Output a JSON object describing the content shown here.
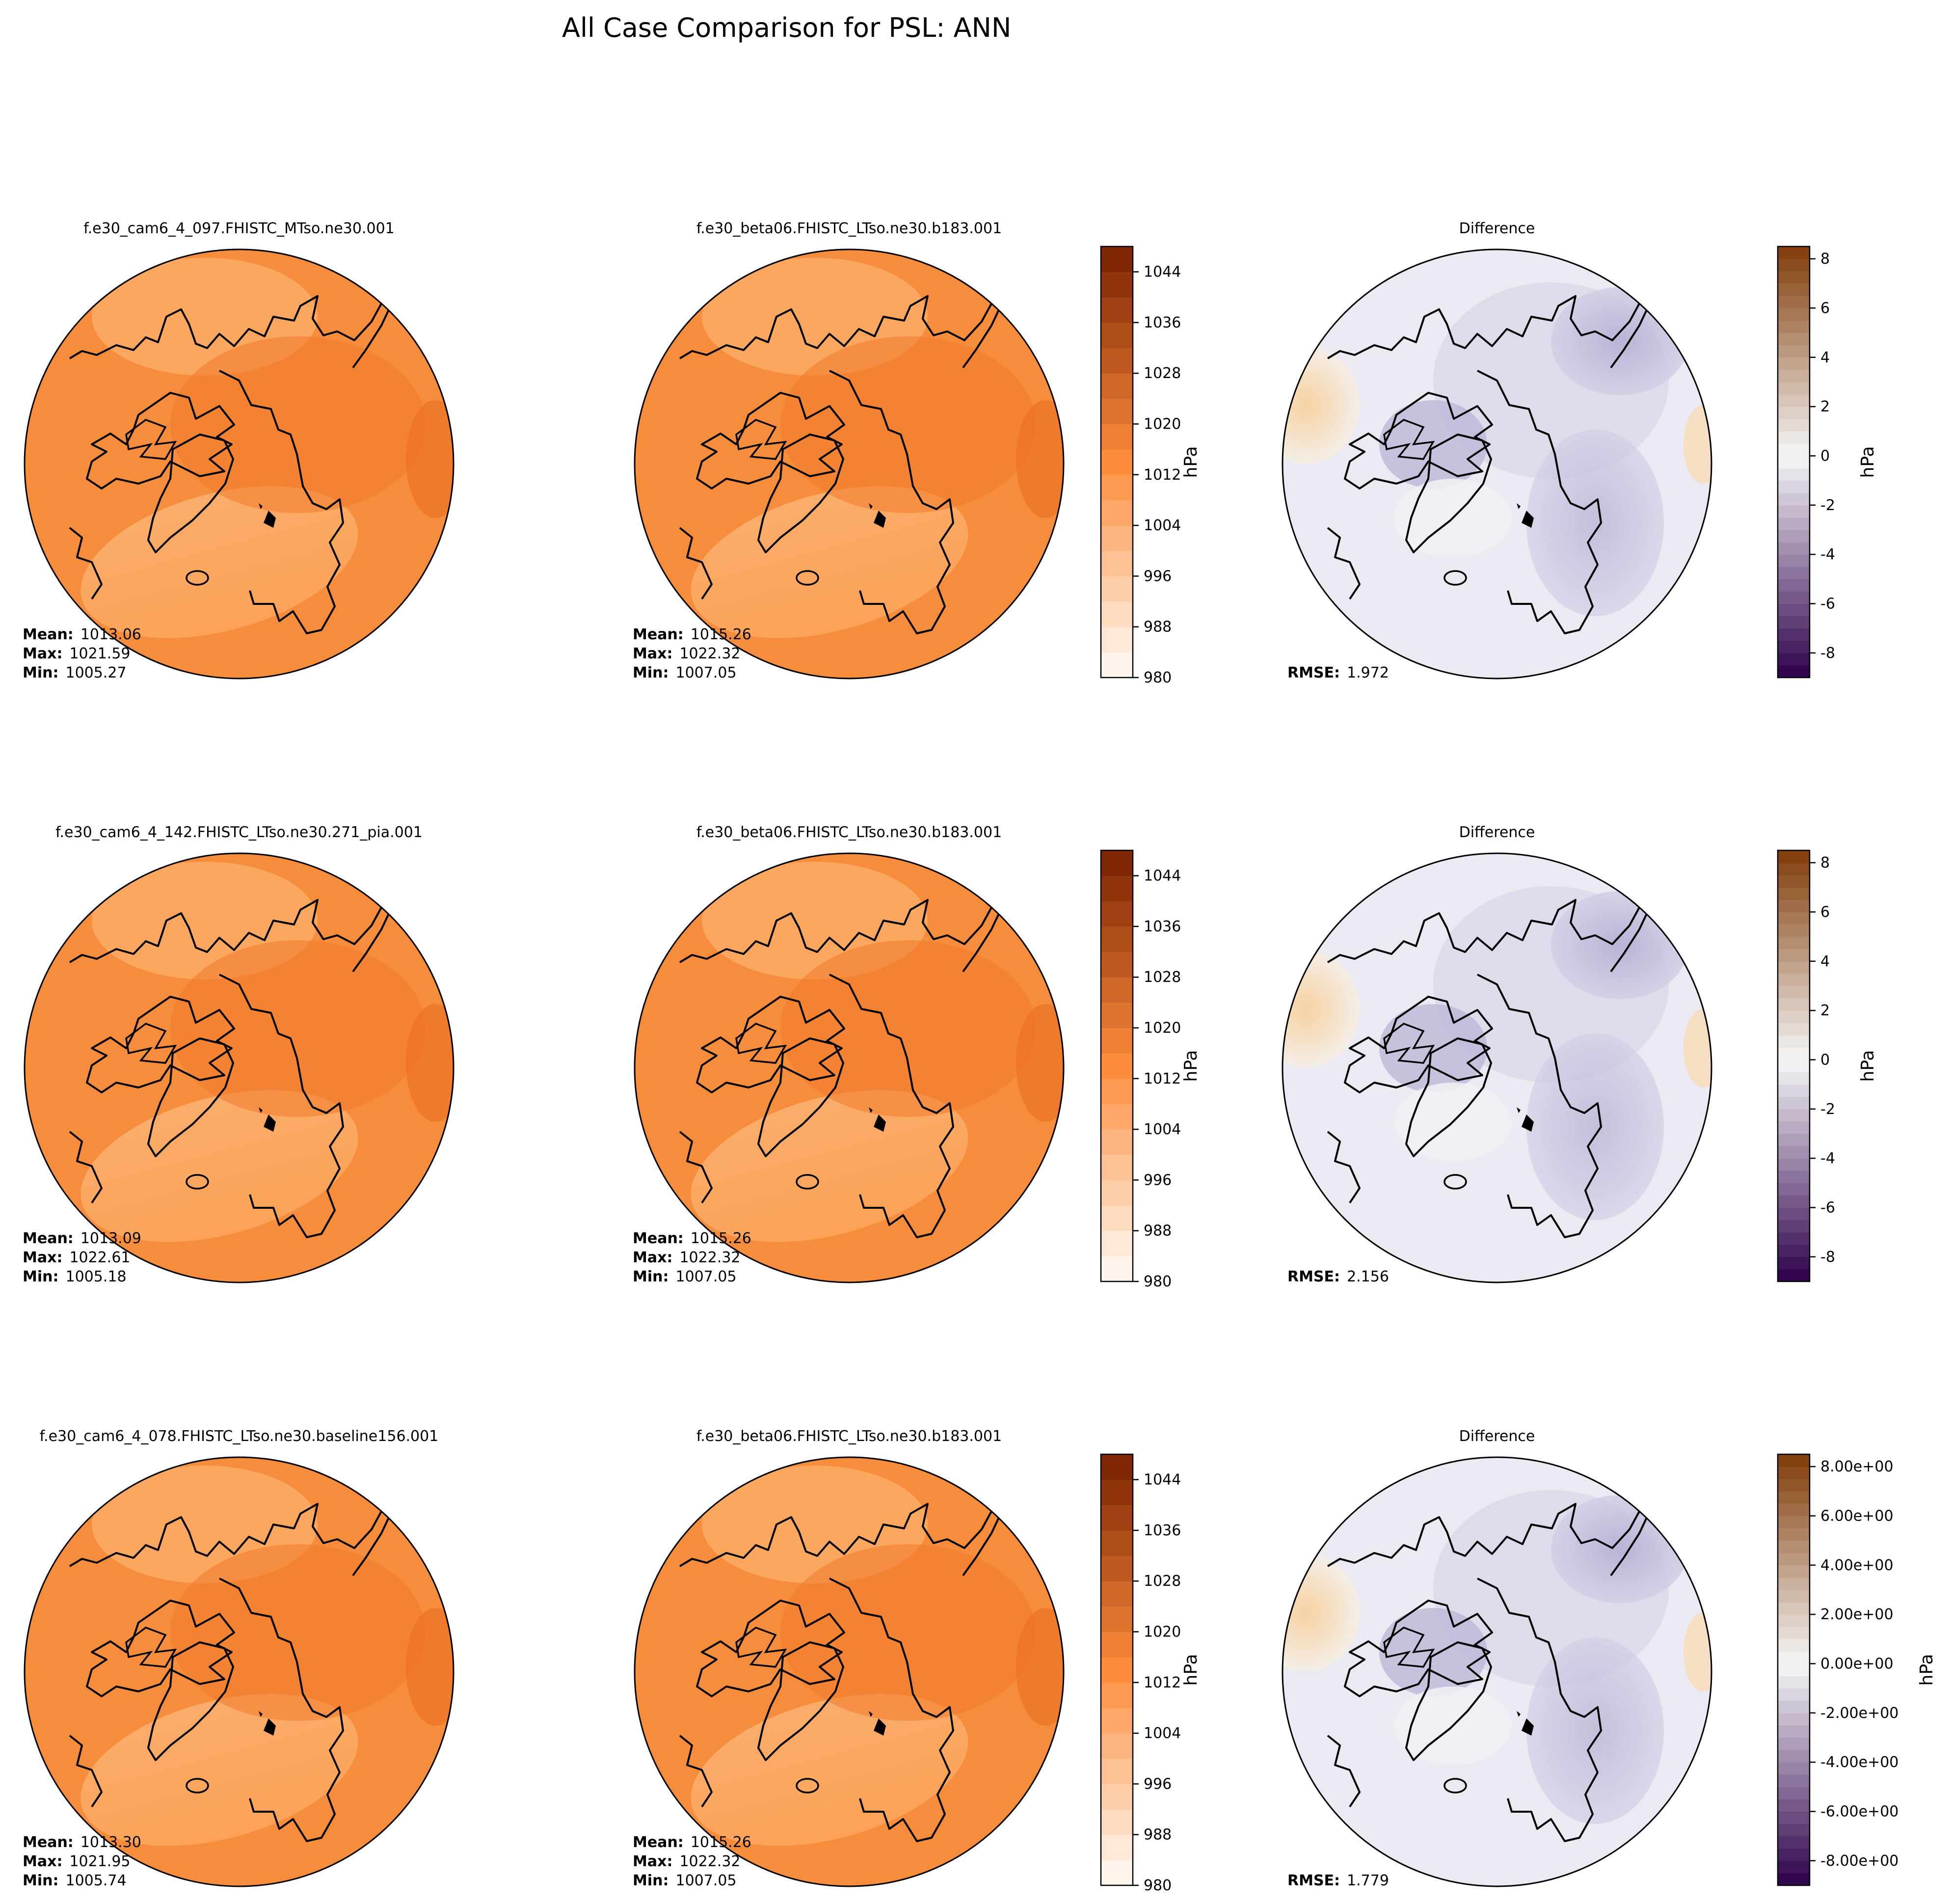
{
  "chart_data": {
    "type": "map",
    "title": "All Case Comparison for PSL: ANN",
    "rows": [
      {
        "test_case": "f.e30_cam6_4_097.FHISTC_MTso.ne30.001",
        "base_case": "f.e30_beta06.FHISTC_LTso.ne30.b183.001",
        "diff_title": "Difference",
        "test_stats": {
          "mean_label": "Mean:",
          "mean": "1013.06",
          "max_label": "Max:",
          "max": "1021.59",
          "min_label": "Min:",
          "min": "1005.27"
        },
        "base_stats": {
          "mean_label": "Mean:",
          "mean": "1015.26",
          "max_label": "Max:",
          "max": "1022.32",
          "min_label": "Min:",
          "min": "1007.05"
        },
        "rmse_label": "RMSE:",
        "rmse": "1.972",
        "cbar_label": "hPa",
        "value_ticks": [
          "980",
          "988",
          "996",
          "1004",
          "1012",
          "1020",
          "1028",
          "1036",
          "1044"
        ],
        "diff_ticks": [
          "-8",
          "-6",
          "-4",
          "-2",
          "0",
          "2",
          "4",
          "6",
          "8"
        ],
        "diff_cbar_label": "hPa"
      },
      {
        "test_case": "f.e30_cam6_4_142.FHISTC_LTso.ne30.271_pia.001",
        "base_case": "f.e30_beta06.FHISTC_LTso.ne30.b183.001",
        "diff_title": "Difference",
        "test_stats": {
          "mean_label": "Mean:",
          "mean": "1013.09",
          "max_label": "Max:",
          "max": "1022.61",
          "min_label": "Min:",
          "min": "1005.18"
        },
        "base_stats": {
          "mean_label": "Mean:",
          "mean": "1015.26",
          "max_label": "Max:",
          "max": "1022.32",
          "min_label": "Min:",
          "min": "1007.05"
        },
        "rmse_label": "RMSE:",
        "rmse": "2.156",
        "cbar_label": "hPa",
        "value_ticks": [
          "980",
          "988",
          "996",
          "1004",
          "1012",
          "1020",
          "1028",
          "1036",
          "1044"
        ],
        "diff_ticks": [
          "-8",
          "-6",
          "-4",
          "-2",
          "0",
          "2",
          "4",
          "6",
          "8"
        ],
        "diff_cbar_label": "hPa"
      },
      {
        "test_case": "f.e30_cam6_4_078.FHISTC_LTso.ne30.baseline156.001",
        "base_case": "f.e30_beta06.FHISTC_LTso.ne30.b183.001",
        "diff_title": "Difference",
        "test_stats": {
          "mean_label": "Mean:",
          "mean": "1013.30",
          "max_label": "Max:",
          "max": "1021.95",
          "min_label": "Min:",
          "min": "1005.74"
        },
        "base_stats": {
          "mean_label": "Mean:",
          "mean": "1015.26",
          "max_label": "Max:",
          "max": "1022.32",
          "min_label": "Min:",
          "min": "1007.05"
        },
        "rmse_label": "RMSE:",
        "rmse": "1.779",
        "cbar_label": "hPa",
        "value_ticks": [
          "980",
          "988",
          "996",
          "1004",
          "1012",
          "1020",
          "1028",
          "1036",
          "1044"
        ],
        "diff_ticks": [
          "-8.00e+00",
          "-6.00e+00",
          "-4.00e+00",
          "-2.00e+00",
          "0.00e+00",
          "2.00e+00",
          "4.00e+00",
          "6.00e+00",
          "8.00e+00"
        ],
        "diff_cbar_label": "hPa"
      }
    ],
    "value_colorbar": {
      "min": 980,
      "max": 1048,
      "step": 4,
      "tick_values": [
        980,
        988,
        996,
        1004,
        1012,
        1020,
        1028,
        1036,
        1044
      ]
    },
    "diff_colorbar": {
      "min": -9,
      "max": 8.5,
      "tick_values": [
        -8,
        -6,
        -4,
        -2,
        0,
        2,
        4,
        6,
        8
      ]
    },
    "colors": {
      "value_low": "#fff5eb",
      "value_mid": "#fd8d3c",
      "value_high": "#7f2704",
      "map_base": "#f68d3c",
      "map_light": "#fbab65",
      "map_dark": "#f07a2a",
      "diff_neg_max": "#2d004b",
      "diff_zero": "#f7f7f7",
      "diff_pos_max": "#7f3b08",
      "diff_base": "#dcdaea",
      "diff_dark": "#b7b1d4",
      "diff_warm": "#f9d9ae"
    }
  }
}
